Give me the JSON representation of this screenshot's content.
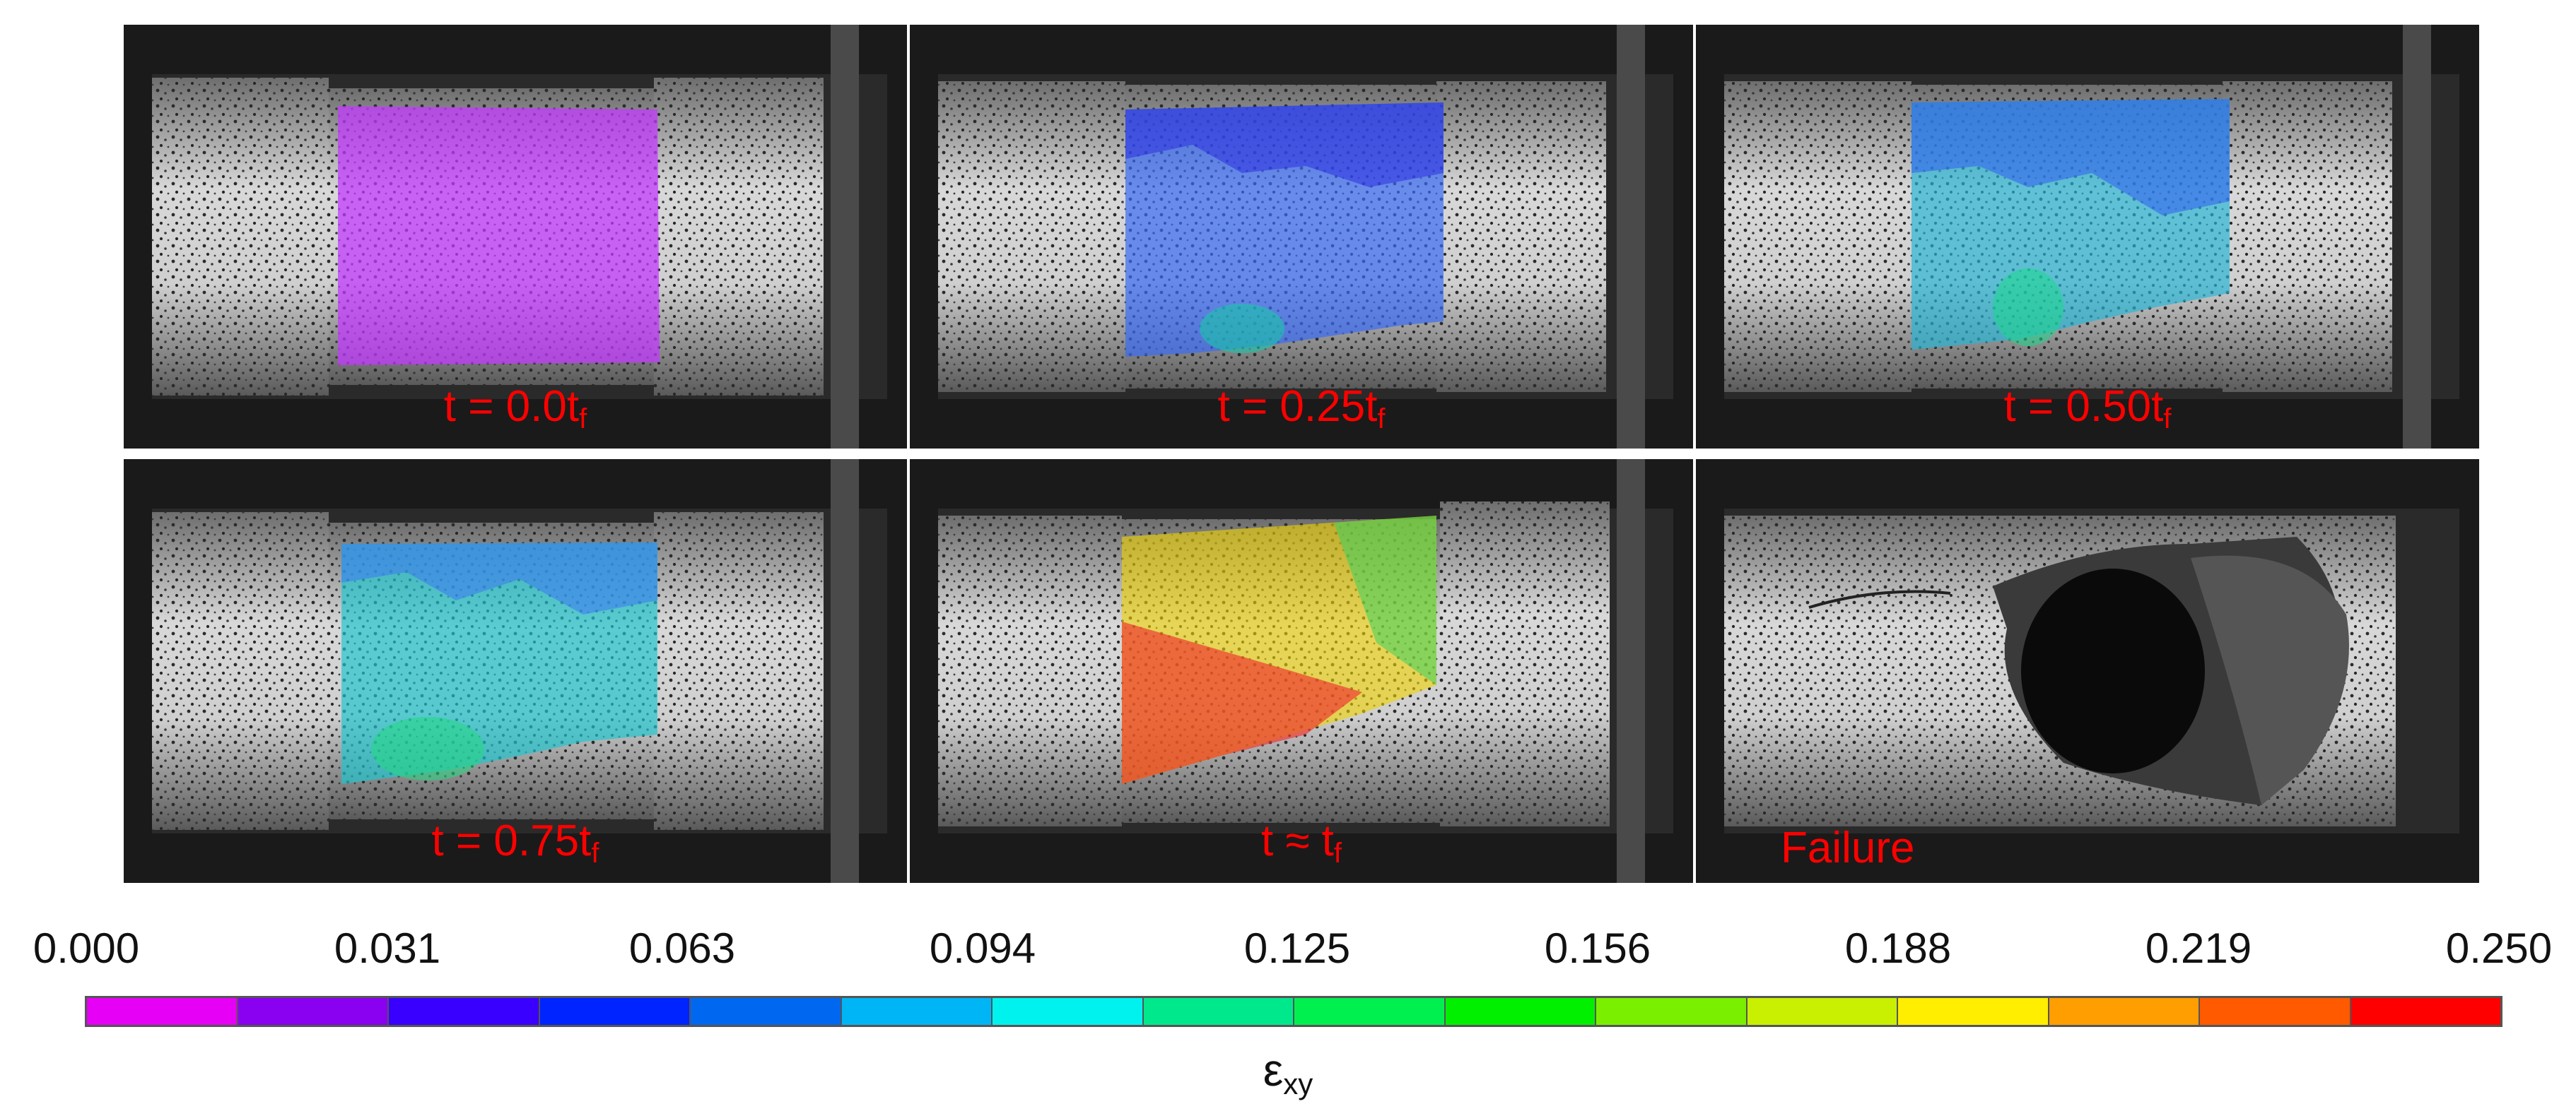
{
  "panels": [
    {
      "caption_main": "t = 0.0t",
      "caption_sub": "f"
    },
    {
      "caption_main": "t = 0.25t",
      "caption_sub": "f"
    },
    {
      "caption_main": "t = 0.50t",
      "caption_sub": "f"
    },
    {
      "caption_main": "t = 0.75t",
      "caption_sub": "f"
    },
    {
      "caption_main": "t ≈ t",
      "caption_sub": "f"
    },
    {
      "caption_main": "Failure",
      "caption_sub": ""
    }
  ],
  "colorbar": {
    "tick_labels": [
      "0.000",
      "0.031",
      "0.063",
      "0.094",
      "0.125",
      "0.156",
      "0.188",
      "0.219",
      "0.250"
    ],
    "label_main": "ε",
    "label_sub": "xy",
    "colors": [
      "#e600f5",
      "#8a00f0",
      "#3a00ff",
      "#0024ff",
      "#0068f0",
      "#00b5f5",
      "#00f2ee",
      "#00e88c",
      "#00f050",
      "#00f000",
      "#7af000",
      "#c8f000",
      "#ffee00",
      "#ff9e00",
      "#ff5a00",
      "#ff0000"
    ]
  }
}
